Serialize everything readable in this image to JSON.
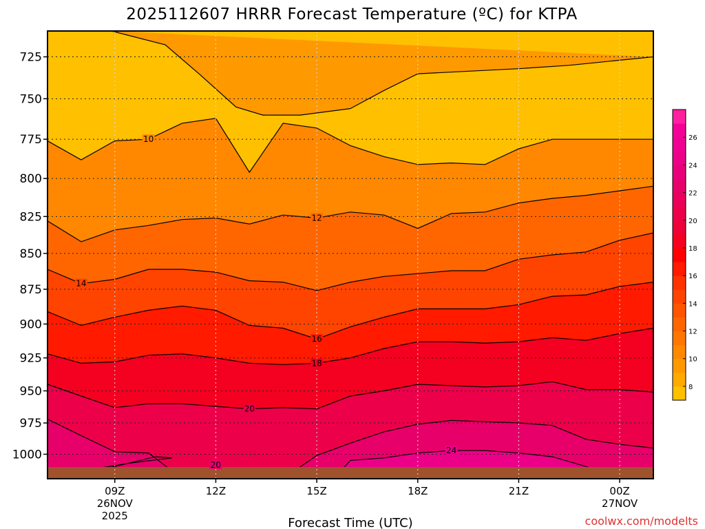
{
  "chart_data": {
    "type": "filled-contour",
    "title": "2025112607 HRRR Forecast Temperature (ºC) for KTPA",
    "xlabel": "Forecast Time (UTC)",
    "ylabel": "",
    "x_ticks": [
      {
        "time": "09Z",
        "date": "26NOV",
        "year": "2025",
        "hours": 9
      },
      {
        "time": "12Z",
        "date": "",
        "year": "",
        "hours": 12
      },
      {
        "time": "15Z",
        "date": "",
        "year": "",
        "hours": 15
      },
      {
        "time": "18Z",
        "date": "",
        "year": "",
        "hours": 18
      },
      {
        "time": "21Z",
        "date": "",
        "year": "",
        "hours": 21
      },
      {
        "time": "00Z",
        "date": "27NOV",
        "year": "",
        "hours": 24
      }
    ],
    "xlim_hours": [
      7,
      25
    ],
    "y_ticks": [
      "725",
      "750",
      "775",
      "800",
      "825",
      "850",
      "875",
      "900",
      "925",
      "950",
      "975",
      "1000"
    ],
    "ylim_hpa": [
      710,
      1020
    ],
    "y_scale": "log pressure (inverted)",
    "grid": true,
    "colorbar": {
      "ticks": [
        "8",
        "10",
        "12",
        "14",
        "16",
        "18",
        "20",
        "22",
        "24",
        "26"
      ],
      "levels": [
        7,
        8,
        9,
        10,
        11,
        12,
        13,
        14,
        15,
        16,
        17,
        18,
        19,
        20,
        21,
        22,
        23,
        24,
        25,
        26,
        27,
        28
      ],
      "colors": [
        "#ffc000",
        "#ffaa00",
        "#ff9900",
        "#ff8800",
        "#ff7700",
        "#ff6600",
        "#ff5500",
        "#ff4400",
        "#ff3300",
        "#ff1a00",
        "#ff0000",
        "#f40020",
        "#ee0038",
        "#ec004a",
        "#ea005a",
        "#e8006a",
        "#e8007a",
        "#ec0088",
        "#f00090",
        "#f40098",
        "#ff20a0"
      ]
    },
    "ground_color": "#a0522d",
    "contour_labels": [
      "10",
      "12",
      "14",
      "16",
      "18",
      "20",
      "20",
      "24"
    ],
    "series": [
      {
        "level": 9,
        "x": [
          8.9,
          10.5,
          11.5,
          12.6,
          13.4,
          14.5,
          16,
          17,
          18,
          21,
          22.5,
          25
        ],
        "p": [
          710,
          718,
          735,
          755,
          760,
          760,
          756,
          745,
          735,
          732,
          730,
          725
        ]
      },
      {
        "level": 10,
        "x": [
          7,
          8,
          9,
          10,
          11,
          12,
          13,
          14,
          15,
          16,
          17,
          18,
          19,
          20,
          21,
          22,
          23,
          24,
          25
        ],
        "p": [
          776,
          788,
          776,
          775,
          765,
          762,
          796,
          765,
          768,
          779,
          786,
          791,
          790,
          791,
          781,
          775,
          775,
          775,
          775
        ]
      },
      {
        "level": 12,
        "x": [
          7,
          8,
          9,
          10,
          11,
          12,
          13,
          14,
          15,
          16,
          17,
          18,
          19,
          20,
          21,
          22,
          23,
          24,
          25
        ],
        "p": [
          828,
          842,
          834,
          831,
          827,
          826,
          830,
          824,
          826,
          822,
          824,
          833,
          823,
          822,
          816,
          813,
          811,
          808,
          805
        ]
      },
      {
        "level": 14,
        "x": [
          7,
          8,
          9,
          10,
          11,
          12,
          13,
          14,
          15,
          16,
          17,
          18,
          19,
          20,
          21,
          22,
          23,
          24,
          25
        ],
        "p": [
          861,
          871,
          868,
          861,
          861,
          863,
          869,
          870,
          876,
          870,
          866,
          864,
          862,
          862,
          854,
          851,
          849,
          841,
          836
        ]
      },
      {
        "level": 16,
        "x": [
          7,
          8,
          9,
          10,
          11,
          12,
          13,
          14,
          15,
          16,
          17,
          18,
          19,
          20,
          21,
          22,
          23,
          24,
          25
        ],
        "p": [
          891,
          901,
          895,
          890,
          887,
          890,
          901,
          903,
          911,
          902,
          895,
          889,
          889,
          889,
          886,
          880,
          879,
          873,
          870
        ]
      },
      {
        "level": 18,
        "x": [
          7,
          8,
          9,
          10,
          11,
          12,
          13,
          14,
          15,
          16,
          17,
          18,
          19,
          20,
          21,
          22,
          23,
          24,
          25
        ],
        "p": [
          922,
          929,
          928,
          923,
          922,
          925,
          929,
          930,
          929,
          925,
          918,
          913,
          913,
          914,
          913,
          910,
          912,
          907,
          903
        ]
      },
      {
        "level": 20,
        "x": [
          7,
          8,
          9,
          10,
          11,
          12,
          13,
          14,
          15,
          16,
          17,
          18,
          19,
          20,
          21,
          22,
          23,
          24,
          25
        ],
        "p": [
          945,
          954,
          963,
          960,
          960,
          962,
          964,
          963,
          964,
          954,
          950,
          945,
          946,
          947,
          946,
          943,
          949,
          949,
          951
        ]
      },
      {
        "level": 22,
        "x": [
          7,
          8,
          9,
          10,
          11,
          12,
          13,
          14,
          15,
          16,
          17,
          18,
          19,
          20,
          21,
          22,
          23,
          24,
          25
        ],
        "p": [
          972,
          985,
          998,
          999,
          1020,
          1020,
          1020,
          1020,
          1001,
          991,
          982,
          976,
          973,
          974,
          975,
          977,
          988,
          992,
          995
        ]
      },
      {
        "level": 24,
        "x": [
          15.5,
          16,
          17,
          18,
          19,
          20,
          21,
          22,
          23,
          24
        ],
        "p": [
          1020,
          1005,
          1003,
          999,
          997,
          997,
          999,
          1002,
          1010,
          1020
        ]
      },
      {
        "level": 22,
        "x": [
          7.2,
          8,
          9,
          10.2,
          10.7,
          9.5,
          8.6,
          8
        ],
        "p": [
          1020,
          1017,
          1010,
          1002,
          1003,
          1007,
          1011,
          1020
        ]
      }
    ],
    "unit": "ºC"
  },
  "credit": "coolwx.com/modelts"
}
